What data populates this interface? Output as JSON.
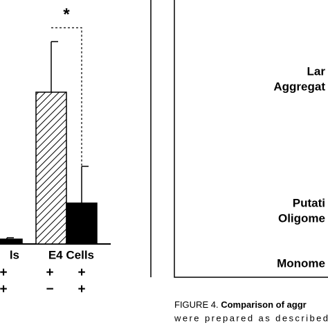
{
  "chart_data": {
    "type": "bar",
    "categories": [
      "ls",
      "E4 Cells"
    ],
    "series": [
      {
        "color": "hatched",
        "values": [
          null,
          219
        ],
        "errors": [
          null,
          73
        ]
      },
      {
        "color": "#000000",
        "values": [
          7,
          59
        ],
        "errors": [
          2,
          53
        ]
      }
    ],
    "ylim": [
      0,
      300
    ],
    "significance": "*",
    "treatments": [
      [
        "+",
        "+",
        "+"
      ],
      [
        "+",
        "−",
        "+"
      ]
    ]
  },
  "gel_labels": [
    "Lar",
    "Aggregat",
    "Putati",
    "Oligome",
    "Monome"
  ],
  "caption": {
    "label": "FIGURE 4.",
    "title": "Comparison of aggr",
    "line2": "were prepared as described"
  }
}
